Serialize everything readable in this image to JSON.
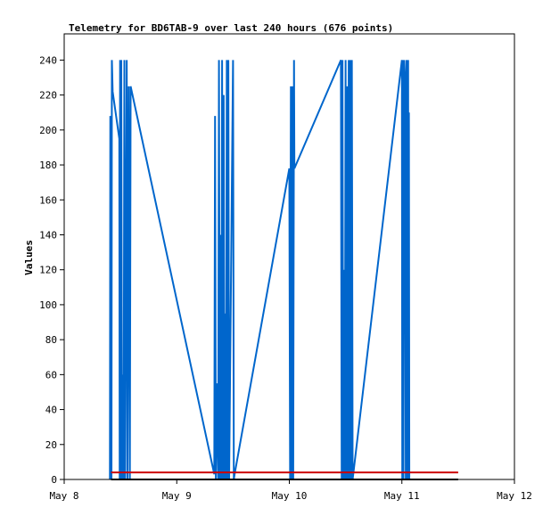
{
  "chart_data": {
    "type": "line",
    "title": "Telemetry for BD6TAB-9 over last 240 hours (676 points)",
    "xlabel": "",
    "ylabel": "Values",
    "xlim": [
      "2024-05-08T00:00",
      "2024-05-12T00:00"
    ],
    "ylim": [
      0,
      255
    ],
    "x_ticks": [
      {
        "x": "2024-05-08T00:00",
        "label": "May 8"
      },
      {
        "x": "2024-05-09T00:00",
        "label": "May 9"
      },
      {
        "x": "2024-05-10T00:00",
        "label": "May 10"
      },
      {
        "x": "2024-05-11T00:00",
        "label": "May 11"
      },
      {
        "x": "2024-05-12T00:00",
        "label": "May 12"
      }
    ],
    "y_ticks": [
      0,
      20,
      40,
      60,
      80,
      100,
      120,
      140,
      160,
      180,
      200,
      220,
      240
    ],
    "grid": false,
    "legend": "none",
    "series": [
      {
        "color": "#0066cc",
        "points": [
          [
            "2024-05-08T09:45",
            0
          ],
          [
            "2024-05-08T09:50",
            208
          ],
          [
            "2024-05-08T09:55",
            0
          ],
          [
            "2024-05-08T10:00",
            192
          ],
          [
            "2024-05-08T10:05",
            0
          ],
          [
            "2024-05-08T10:10",
            240
          ],
          [
            "2024-05-08T10:20",
            222
          ],
          [
            "2024-05-08T11:45",
            195
          ],
          [
            "2024-05-08T11:50",
            0
          ],
          [
            "2024-05-08T11:55",
            240
          ],
          [
            "2024-05-08T12:00",
            0
          ],
          [
            "2024-05-08T12:10",
            240
          ],
          [
            "2024-05-08T12:20",
            0
          ],
          [
            "2024-05-08T12:30",
            60
          ],
          [
            "2024-05-08T12:40",
            0
          ],
          [
            "2024-05-08T12:50",
            240
          ],
          [
            "2024-05-08T13:00",
            0
          ],
          [
            "2024-05-08T13:20",
            240
          ],
          [
            "2024-05-08T13:30",
            0
          ],
          [
            "2024-05-08T13:45",
            225
          ],
          [
            "2024-05-08T14:00",
            0
          ],
          [
            "2024-05-08T14:10",
            225
          ],
          [
            "2024-05-09T08:00",
            3
          ],
          [
            "2024-05-09T08:10",
            208
          ],
          [
            "2024-05-09T08:20",
            0
          ],
          [
            "2024-05-09T08:40",
            55
          ],
          [
            "2024-05-09T08:50",
            0
          ],
          [
            "2024-05-09T09:00",
            240
          ],
          [
            "2024-05-09T09:10",
            0
          ],
          [
            "2024-05-09T09:20",
            140
          ],
          [
            "2024-05-09T09:30",
            0
          ],
          [
            "2024-05-09T09:40",
            240
          ],
          [
            "2024-05-09T09:50",
            0
          ],
          [
            "2024-05-09T10:00",
            220
          ],
          [
            "2024-05-09T10:10",
            0
          ],
          [
            "2024-05-09T10:20",
            95
          ],
          [
            "2024-05-09T10:30",
            0
          ],
          [
            "2024-05-09T10:40",
            240
          ],
          [
            "2024-05-09T10:50",
            0
          ],
          [
            "2024-05-09T11:00",
            240
          ],
          [
            "2024-05-09T11:10",
            0
          ],
          [
            "2024-05-09T12:00",
            240
          ],
          [
            "2024-05-09T12:10",
            0
          ],
          [
            "2024-05-09T12:20",
            3
          ],
          [
            "2024-05-10T00:00",
            178
          ],
          [
            "2024-05-10T00:10",
            0
          ],
          [
            "2024-05-10T00:20",
            225
          ],
          [
            "2024-05-10T00:30",
            0
          ],
          [
            "2024-05-10T00:40",
            225
          ],
          [
            "2024-05-10T00:50",
            0
          ],
          [
            "2024-05-10T01:00",
            240
          ],
          [
            "2024-05-10T01:05",
            178
          ],
          [
            "2024-05-10T11:00",
            240
          ],
          [
            "2024-05-10T11:10",
            0
          ],
          [
            "2024-05-10T11:20",
            240
          ],
          [
            "2024-05-10T11:30",
            0
          ],
          [
            "2024-05-10T11:40",
            120
          ],
          [
            "2024-05-10T11:50",
            0
          ],
          [
            "2024-05-10T12:00",
            240
          ],
          [
            "2024-05-10T12:10",
            0
          ],
          [
            "2024-05-10T12:20",
            225
          ],
          [
            "2024-05-10T12:30",
            0
          ],
          [
            "2024-05-10T12:40",
            240
          ],
          [
            "2024-05-10T12:50",
            0
          ],
          [
            "2024-05-10T13:00",
            240
          ],
          [
            "2024-05-10T13:10",
            0
          ],
          [
            "2024-05-10T13:20",
            240
          ],
          [
            "2024-05-10T13:30",
            0
          ],
          [
            "2024-05-11T00:00",
            240
          ],
          [
            "2024-05-11T00:05",
            0
          ],
          [
            "2024-05-11T00:10",
            240
          ],
          [
            "2024-05-11T00:20",
            0
          ],
          [
            "2024-05-11T00:30",
            240
          ],
          [
            "2024-05-11T00:40",
            230
          ],
          [
            "2024-05-11T00:50",
            0
          ],
          [
            "2024-05-11T01:00",
            240
          ],
          [
            "2024-05-11T01:10",
            0
          ],
          [
            "2024-05-11T01:20",
            240
          ],
          [
            "2024-05-11T01:25",
            0
          ],
          [
            "2024-05-11T01:30",
            210
          ],
          [
            "2024-05-11T01:35",
            0
          ]
        ]
      },
      {
        "color": "#cc0000",
        "points": [
          [
            "2024-05-08T10:00",
            4
          ],
          [
            "2024-05-11T12:00",
            4
          ]
        ]
      },
      {
        "color": "#000000",
        "points": [
          [
            "2024-05-08T10:00",
            0
          ],
          [
            "2024-05-11T12:00",
            0
          ]
        ]
      }
    ]
  }
}
